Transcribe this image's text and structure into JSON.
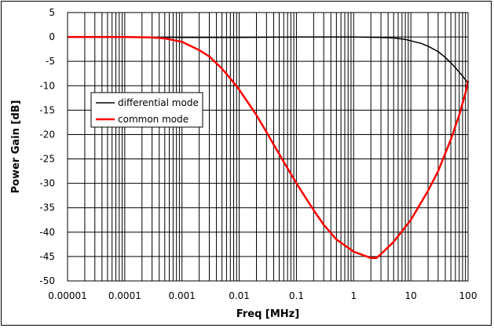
{
  "chart_data": {
    "type": "line",
    "xlabel": "Freq [MHz]",
    "ylabel": "Power Gain [dB]",
    "xscale": "log",
    "xlim": [
      1e-05,
      100
    ],
    "ylim": [
      -50,
      5
    ],
    "x_ticks": [
      "0.00001",
      "0.0001",
      "0.001",
      "0.01",
      "0.1",
      "1",
      "10",
      "100"
    ],
    "y_ticks": [
      "5",
      "0",
      "-5",
      "-10",
      "-15",
      "-20",
      "-25",
      "-30",
      "-35",
      "-40",
      "-45",
      "-50"
    ],
    "grid": true,
    "legend_position": "left-middle",
    "series": [
      {
        "name": "differential mode",
        "color": "#000000",
        "x": [
          1e-05,
          0.0001,
          0.001,
          0.01,
          0.1,
          1,
          3,
          5,
          8,
          10,
          15,
          20,
          30,
          40,
          50,
          60,
          70,
          80,
          90,
          100
        ],
        "y": [
          0,
          0,
          -0.1,
          -0.1,
          0,
          0,
          -0.1,
          -0.2,
          -0.5,
          -0.8,
          -1.3,
          -1.9,
          -3.0,
          -4.2,
          -5.3,
          -6.3,
          -7.2,
          -8.0,
          -8.8,
          -9.5
        ]
      },
      {
        "name": "common mode",
        "color": "#ff0000",
        "x": [
          1e-05,
          0.0001,
          0.0003,
          0.0005,
          0.001,
          0.002,
          0.003,
          0.005,
          0.007,
          0.01,
          0.02,
          0.03,
          0.05,
          0.1,
          0.2,
          0.3,
          0.5,
          1,
          2,
          2.5,
          3,
          5,
          10,
          20,
          30,
          50,
          70,
          90,
          100
        ],
        "y": [
          0,
          0,
          -0.1,
          -0.3,
          -1.0,
          -2.7,
          -4.0,
          -6.5,
          -8.5,
          -10.8,
          -16,
          -19.5,
          -24,
          -30,
          -35.5,
          -38.5,
          -41.5,
          -44,
          -45.3,
          -45.3,
          -44.5,
          -42,
          -37.5,
          -31.5,
          -27.5,
          -21,
          -16,
          -11.5,
          -9
        ]
      }
    ]
  }
}
